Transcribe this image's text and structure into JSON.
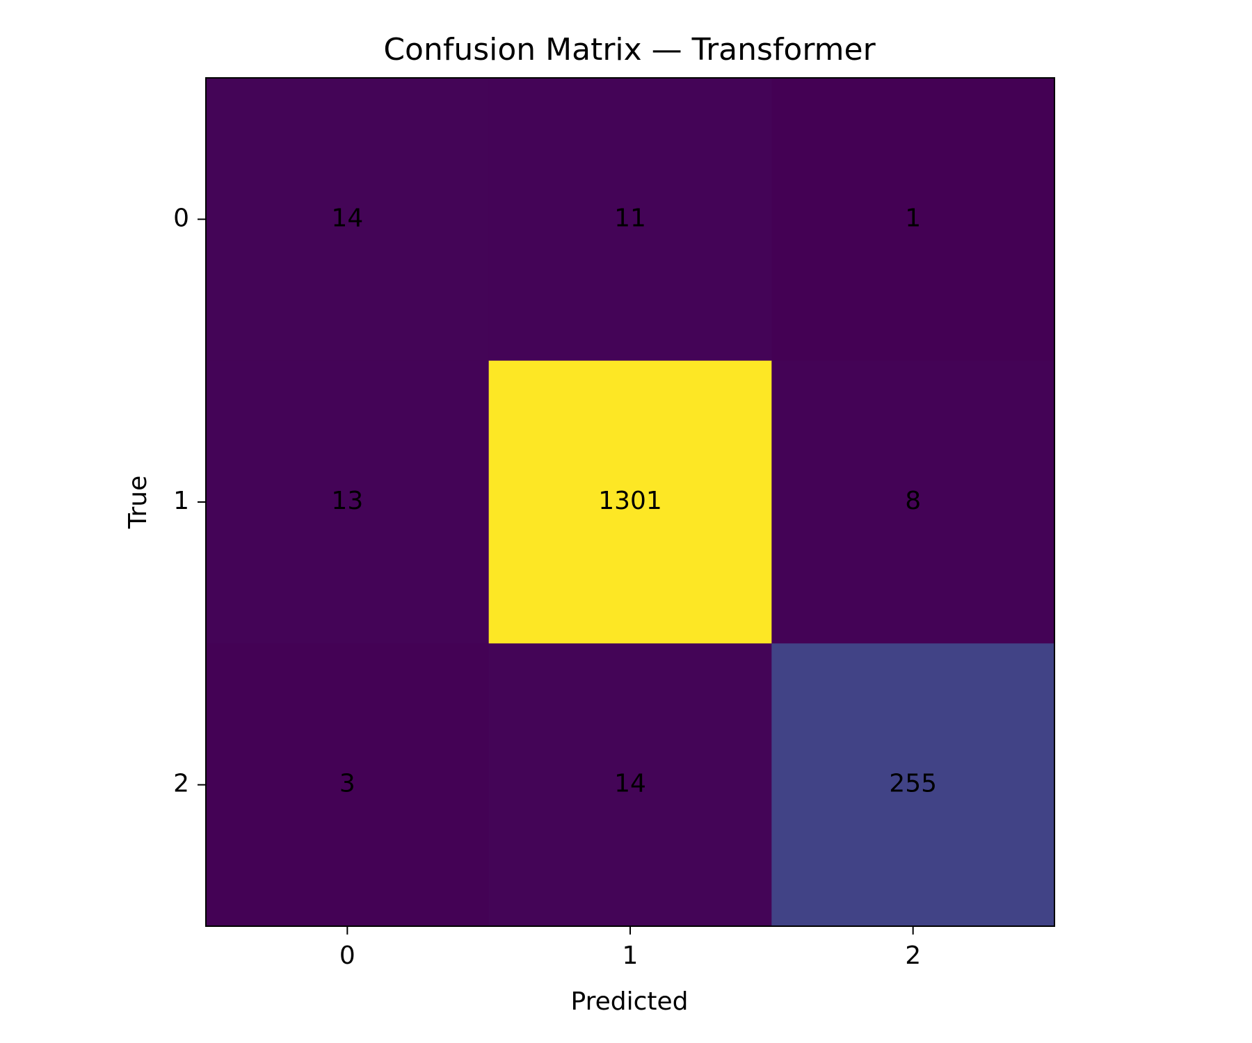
{
  "chart_data": {
    "type": "heatmap",
    "title": "Confusion Matrix — Transformer",
    "xlabel": "Predicted",
    "ylabel": "True",
    "x_categories": [
      "0",
      "1",
      "2"
    ],
    "y_categories": [
      "0",
      "1",
      "2"
    ],
    "values": [
      [
        14,
        11,
        1
      ],
      [
        13,
        1301,
        8
      ],
      [
        3,
        14,
        255
      ]
    ],
    "colormap": "viridis",
    "grid": false,
    "colors": {
      "annotation_text": "#000000",
      "frame": "#000000",
      "background": "#ffffff"
    }
  }
}
